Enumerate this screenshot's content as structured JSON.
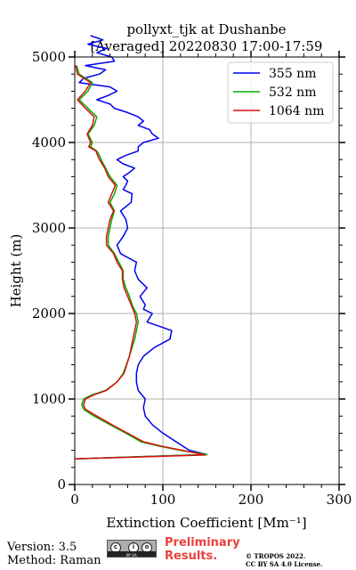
{
  "chart_data": {
    "type": "line",
    "title": "pollyxt_tjk at Dushanbe",
    "subtitle": "[Averaged] 20220830 17:00-17:59",
    "xlabel": "Extinction Coefficient [Mm⁻¹]",
    "ylabel": "Height (m)",
    "xlim": [
      0,
      300
    ],
    "ylim": [
      0,
      5000
    ],
    "x_ticks": [
      "0",
      "100",
      "200",
      "300"
    ],
    "y_ticks": [
      "0",
      "1000",
      "2000",
      "3000",
      "4000",
      "5000"
    ],
    "grid": true,
    "legend_position": "top-right",
    "series": [
      {
        "name": "355 nm",
        "color": "#0000ee",
        "x": [
          0,
          150,
          130,
          115,
          100,
          88,
          80,
          78,
          80,
          72,
          70,
          70,
          72,
          78,
          90,
          108,
          110,
          82,
          88,
          78,
          80,
          74,
          82,
          72,
          68,
          70,
          52,
          48,
          55,
          60,
          58,
          52,
          64,
          65,
          55,
          58,
          60,
          55,
          62,
          68,
          55,
          48,
          58,
          72,
          72,
          78,
          95,
          88,
          85,
          72,
          78,
          72,
          60,
          45,
          40,
          25,
          38,
          48,
          40,
          5,
          10,
          28,
          35,
          12,
          45,
          42,
          25,
          36,
          15,
          32,
          18
        ],
        "y": [
          300,
          350,
          400,
          500,
          600,
          700,
          800,
          900,
          1000,
          1100,
          1200,
          1300,
          1400,
          1500,
          1600,
          1700,
          1800,
          1900,
          2000,
          2050,
          2100,
          2200,
          2300,
          2400,
          2500,
          2600,
          2700,
          2800,
          2900,
          3000,
          3100,
          3200,
          3300,
          3400,
          3450,
          3500,
          3550,
          3600,
          3650,
          3700,
          3750,
          3800,
          3850,
          3900,
          3950,
          4000,
          4050,
          4100,
          4150,
          4200,
          4250,
          4300,
          4350,
          4400,
          4450,
          4500,
          4550,
          4600,
          4650,
          4700,
          4750,
          4800,
          4850,
          4900,
          4950,
          5000,
          5050,
          5100,
          5150,
          5200,
          5250
        ]
      },
      {
        "name": "532 nm",
        "color": "#00aa00",
        "x": [
          0,
          150,
          120,
          95,
          75,
          58,
          40,
          22,
          10,
          8,
          10,
          20,
          35,
          48,
          55,
          62,
          68,
          70,
          72,
          70,
          65,
          62,
          58,
          55,
          55,
          50,
          45,
          38,
          38,
          40,
          42,
          45,
          40,
          45,
          48,
          40,
          35,
          30,
          28,
          25,
          18,
          20,
          15,
          22,
          25,
          15,
          5,
          15,
          20,
          5,
          2
        ],
        "y": [
          300,
          350,
          400,
          450,
          500,
          600,
          700,
          800,
          880,
          930,
          1000,
          1050,
          1100,
          1200,
          1300,
          1500,
          1700,
          1800,
          1900,
          2000,
          2100,
          2200,
          2300,
          2400,
          2500,
          2600,
          2700,
          2800,
          2900,
          3000,
          3100,
          3200,
          3300,
          3400,
          3500,
          3600,
          3700,
          3800,
          3850,
          3900,
          3950,
          4000,
          4100,
          4200,
          4300,
          4400,
          4500,
          4600,
          4700,
          4800,
          4900
        ]
      },
      {
        "name": "1064 nm",
        "color": "#dd1111",
        "x": [
          0,
          148,
          122,
          98,
          78,
          60,
          42,
          25,
          12,
          10,
          12,
          22,
          36,
          48,
          56,
          62,
          66,
          68,
          70,
          68,
          64,
          60,
          56,
          54,
          54,
          48,
          44,
          36,
          36,
          38,
          40,
          44,
          38,
          42,
          46,
          38,
          34,
          28,
          26,
          24,
          16,
          18,
          14,
          20,
          22,
          12,
          3,
          12,
          18,
          3,
          1
        ],
        "y": [
          300,
          345,
          400,
          450,
          500,
          600,
          700,
          800,
          880,
          930,
          1000,
          1050,
          1100,
          1200,
          1300,
          1500,
          1700,
          1800,
          1900,
          2000,
          2100,
          2200,
          2300,
          2400,
          2500,
          2600,
          2700,
          2800,
          2900,
          3000,
          3100,
          3200,
          3300,
          3400,
          3500,
          3600,
          3700,
          3800,
          3850,
          3900,
          3950,
          4000,
          4100,
          4200,
          4300,
          4400,
          4500,
          4600,
          4700,
          4800,
          4900
        ]
      }
    ]
  },
  "footer": {
    "version": "Version: 3.5",
    "method": "Method: Raman",
    "preliminary": "Preliminary\nResults.",
    "copyright": "© TROPOS 2022.\nCC BY SA 4.0 License.",
    "license_badge_text": "BY   SA"
  }
}
